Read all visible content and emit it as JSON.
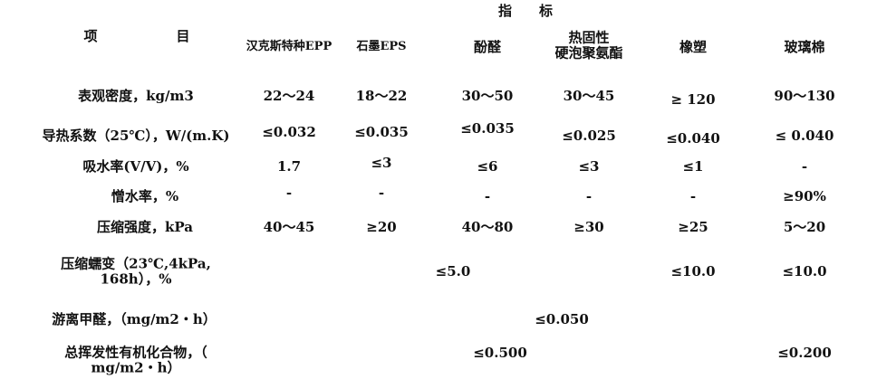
{
  "header": {
    "group_title": "指　　标",
    "item_col_left": "项",
    "item_col_right": "目",
    "columns": [
      "汉克斯特种EPP",
      "石墨EPS",
      "酚醛",
      "热固性\n硬泡聚氨酯",
      "橡塑",
      "玻璃棉"
    ]
  },
  "rows": [
    {
      "label": "表观密度，kg/m3",
      "values": [
        "22～24",
        "18～22",
        "30～50",
        "30～45",
        "≥ 120",
        "90～130"
      ]
    },
    {
      "label": "导热系数（25℃），W/(m.K)",
      "values": [
        "≤0.032",
        "≤0.035",
        "≤0.035",
        "≤0.025",
        "≤0.040",
        "≤ 0.040"
      ]
    },
    {
      "label": "吸水率(V/V)，%",
      "values": [
        "1.7",
        "≤3",
        "≤6",
        "≤3",
        "≤1",
        "-"
      ]
    },
    {
      "label": "憎水率，%",
      "values": [
        "-",
        "-",
        "-",
        "-",
        "-",
        "≥90%"
      ]
    },
    {
      "label": "压缩强度，kPa",
      "values": [
        "40～45",
        "≥20",
        "40～80",
        "≥30",
        "≥25",
        "5～20"
      ]
    },
    {
      "label": "压缩蠕变（23℃,4kPa,\n168h），%",
      "merged_value_epp_to_pu": "≤5.0",
      "values_rubber_glass": [
        "≤10.0",
        "≤10.0"
      ]
    },
    {
      "label": "游离甲醛，（mg/m2・h）",
      "merged_value_all": "≤0.050"
    },
    {
      "label": "总挥发性有机化合物，（\nmg/m2・h）",
      "merged_value_epp_to_rubber": "≤0.500",
      "value_glass": "≤0.200"
    }
  ]
}
